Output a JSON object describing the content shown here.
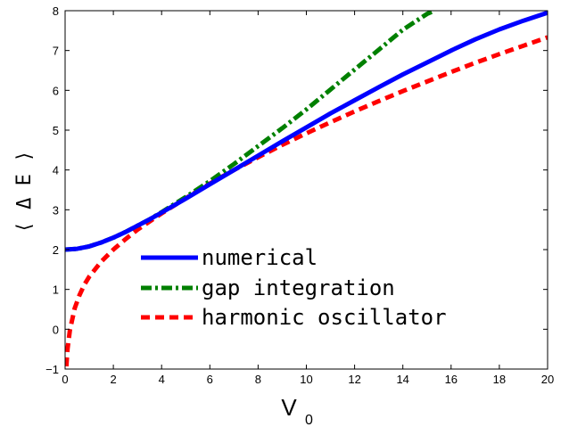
{
  "chart_data": {
    "type": "line",
    "title": "",
    "xlabel": "V",
    "xlabel_subscript": "0",
    "ylabel": "⟨ Δ E ⟩",
    "xlim": [
      0,
      20
    ],
    "ylim": [
      -1,
      8
    ],
    "xticks": [
      "0",
      "2",
      "4",
      "6",
      "8",
      "10",
      "12",
      "14",
      "16",
      "18",
      "20"
    ],
    "yticks": [
      "−1",
      "0",
      "1",
      "2",
      "3",
      "4",
      "5",
      "6",
      "7",
      "8"
    ],
    "grid": false,
    "legend_position": "lower-right",
    "series": [
      {
        "name": "numerical",
        "color": "#0000ff",
        "style": "solid",
        "x": [
          0,
          0.5,
          1,
          1.5,
          2,
          2.5,
          3,
          3.5,
          4,
          5,
          6,
          7,
          8,
          9,
          10,
          11,
          12,
          13,
          14,
          15,
          16,
          17,
          18,
          19,
          20
        ],
        "y": [
          2.0,
          2.02,
          2.08,
          2.18,
          2.3,
          2.44,
          2.6,
          2.76,
          2.93,
          3.28,
          3.64,
          4.0,
          4.36,
          4.72,
          5.07,
          5.42,
          5.75,
          6.08,
          6.4,
          6.7,
          7.0,
          7.28,
          7.53,
          7.75,
          7.95
        ]
      },
      {
        "name": "gap integration",
        "color": "#008000",
        "style": "dash-dot",
        "x": [
          0,
          0.5,
          1,
          1.5,
          2,
          2.5,
          3,
          3.5,
          4,
          5,
          6,
          7,
          8,
          9,
          10,
          11,
          12,
          13,
          14,
          15,
          15.3
        ],
        "y": [
          2.0,
          2.02,
          2.08,
          2.18,
          2.3,
          2.44,
          2.6,
          2.76,
          2.94,
          3.32,
          3.72,
          4.15,
          4.6,
          5.05,
          5.52,
          6.02,
          6.52,
          7.02,
          7.52,
          7.92,
          8.0
        ]
      },
      {
        "name": "harmonic oscillator",
        "color": "#ff0000",
        "style": "dashed",
        "x": [
          0.05,
          0.1,
          0.2,
          0.4,
          0.6,
          0.8,
          1,
          1.5,
          2,
          2.5,
          3,
          4,
          5,
          6,
          7,
          8,
          9,
          10,
          11,
          12,
          13,
          14,
          15,
          16,
          17,
          18,
          19,
          20
        ],
        "y": [
          -0.93,
          -0.5,
          -0.02,
          0.53,
          0.86,
          1.12,
          1.32,
          1.7,
          2.0,
          2.26,
          2.5,
          2.91,
          3.29,
          3.66,
          4.0,
          4.32,
          4.63,
          4.92,
          5.2,
          5.47,
          5.73,
          5.98,
          6.22,
          6.46,
          6.69,
          6.91,
          7.12,
          7.33
        ]
      }
    ]
  }
}
